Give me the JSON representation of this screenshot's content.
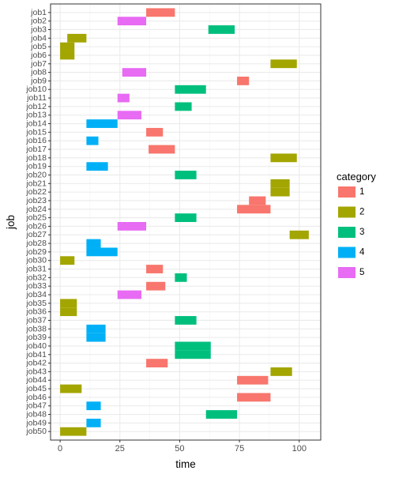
{
  "chart_data": {
    "type": "bar",
    "orientation": "horizontal-range",
    "xlabel": "time",
    "ylabel": "job",
    "xlim": [
      -4,
      109
    ],
    "xticks": [
      0,
      25,
      50,
      75,
      100
    ],
    "grid": true,
    "legend": {
      "title": "category",
      "placement": "right",
      "items": [
        {
          "label": "1",
          "color": "#F8766D"
        },
        {
          "label": "2",
          "color": "#A3A500"
        },
        {
          "label": "3",
          "color": "#00BF7D"
        },
        {
          "label": "4",
          "color": "#00B0F6"
        },
        {
          "label": "5",
          "color": "#E76BF3"
        }
      ]
    },
    "jobs": [
      "job1",
      "job2",
      "job3",
      "job4",
      "job5",
      "job6",
      "job7",
      "job8",
      "job9",
      "job10",
      "job11",
      "job12",
      "job13",
      "job14",
      "job15",
      "job16",
      "job17",
      "job18",
      "job19",
      "job20",
      "job21",
      "job22",
      "job23",
      "job24",
      "job25",
      "job26",
      "job27",
      "job28",
      "job29",
      "job30",
      "job31",
      "job32",
      "job33",
      "job34",
      "job35",
      "job36",
      "job37",
      "job38",
      "job39",
      "job40",
      "job41",
      "job42",
      "job43",
      "job44",
      "job45",
      "job46",
      "job47",
      "job48",
      "job49",
      "job50"
    ],
    "bars": [
      {
        "job": "job1",
        "start": 36,
        "end": 48,
        "category": "1"
      },
      {
        "job": "job2",
        "start": 24,
        "end": 36,
        "category": "5"
      },
      {
        "job": "job3",
        "start": 62,
        "end": 73,
        "category": "3"
      },
      {
        "job": "job4",
        "start": 3,
        "end": 11,
        "category": "2"
      },
      {
        "job": "job5",
        "start": 0,
        "end": 6,
        "category": "2"
      },
      {
        "job": "job6",
        "start": 0,
        "end": 6,
        "category": "2"
      },
      {
        "job": "job7",
        "start": 88,
        "end": 99,
        "category": "2"
      },
      {
        "job": "job8",
        "start": 26,
        "end": 36,
        "category": "5"
      },
      {
        "job": "job9",
        "start": 74,
        "end": 79,
        "category": "1"
      },
      {
        "job": "job10",
        "start": 48,
        "end": 61,
        "category": "3"
      },
      {
        "job": "job11",
        "start": 24,
        "end": 29,
        "category": "5"
      },
      {
        "job": "job12",
        "start": 48,
        "end": 55,
        "category": "3"
      },
      {
        "job": "job13",
        "start": 24,
        "end": 34,
        "category": "5"
      },
      {
        "job": "job14",
        "start": 11,
        "end": 24,
        "category": "4"
      },
      {
        "job": "job15",
        "start": 36,
        "end": 43,
        "category": "1"
      },
      {
        "job": "job16",
        "start": 11,
        "end": 16,
        "category": "4"
      },
      {
        "job": "job17",
        "start": 37,
        "end": 48,
        "category": "1"
      },
      {
        "job": "job18",
        "start": 88,
        "end": 99,
        "category": "2"
      },
      {
        "job": "job19",
        "start": 11,
        "end": 20,
        "category": "4"
      },
      {
        "job": "job20",
        "start": 48,
        "end": 57,
        "category": "3"
      },
      {
        "job": "job21",
        "start": 88,
        "end": 96,
        "category": "2"
      },
      {
        "job": "job22",
        "start": 88,
        "end": 96,
        "category": "2"
      },
      {
        "job": "job23",
        "start": 79,
        "end": 86,
        "category": "1"
      },
      {
        "job": "job24",
        "start": 74,
        "end": 88,
        "category": "1"
      },
      {
        "job": "job25",
        "start": 48,
        "end": 57,
        "category": "3"
      },
      {
        "job": "job26",
        "start": 24,
        "end": 36,
        "category": "5"
      },
      {
        "job": "job27",
        "start": 96,
        "end": 104,
        "category": "2"
      },
      {
        "job": "job28",
        "start": 11,
        "end": 17,
        "category": "4"
      },
      {
        "job": "job29",
        "start": 11,
        "end": 24,
        "category": "4"
      },
      {
        "job": "job30",
        "start": 0,
        "end": 6,
        "category": "2"
      },
      {
        "job": "job31",
        "start": 36,
        "end": 43,
        "category": "1"
      },
      {
        "job": "job32",
        "start": 48,
        "end": 53,
        "category": "3"
      },
      {
        "job": "job33",
        "start": 36,
        "end": 44,
        "category": "1"
      },
      {
        "job": "job34",
        "start": 24,
        "end": 34,
        "category": "5"
      },
      {
        "job": "job35",
        "start": 0,
        "end": 7,
        "category": "2"
      },
      {
        "job": "job36",
        "start": 0,
        "end": 7,
        "category": "2"
      },
      {
        "job": "job37",
        "start": 48,
        "end": 57,
        "category": "3"
      },
      {
        "job": "job38",
        "start": 11,
        "end": 19,
        "category": "4"
      },
      {
        "job": "job39",
        "start": 11,
        "end": 19,
        "category": "4"
      },
      {
        "job": "job40",
        "start": 48,
        "end": 63,
        "category": "3"
      },
      {
        "job": "job41",
        "start": 48,
        "end": 63,
        "category": "3"
      },
      {
        "job": "job42",
        "start": 36,
        "end": 45,
        "category": "1"
      },
      {
        "job": "job43",
        "start": 88,
        "end": 97,
        "category": "2"
      },
      {
        "job": "job44",
        "start": 74,
        "end": 87,
        "category": "1"
      },
      {
        "job": "job45",
        "start": 0,
        "end": 9,
        "category": "2"
      },
      {
        "job": "job46",
        "start": 74,
        "end": 88,
        "category": "1"
      },
      {
        "job": "job47",
        "start": 11,
        "end": 17,
        "category": "4"
      },
      {
        "job": "job48",
        "start": 61,
        "end": 74,
        "category": "3"
      },
      {
        "job": "job49",
        "start": 11,
        "end": 17,
        "category": "4"
      },
      {
        "job": "job50",
        "start": 0,
        "end": 11,
        "category": "2"
      }
    ]
  }
}
